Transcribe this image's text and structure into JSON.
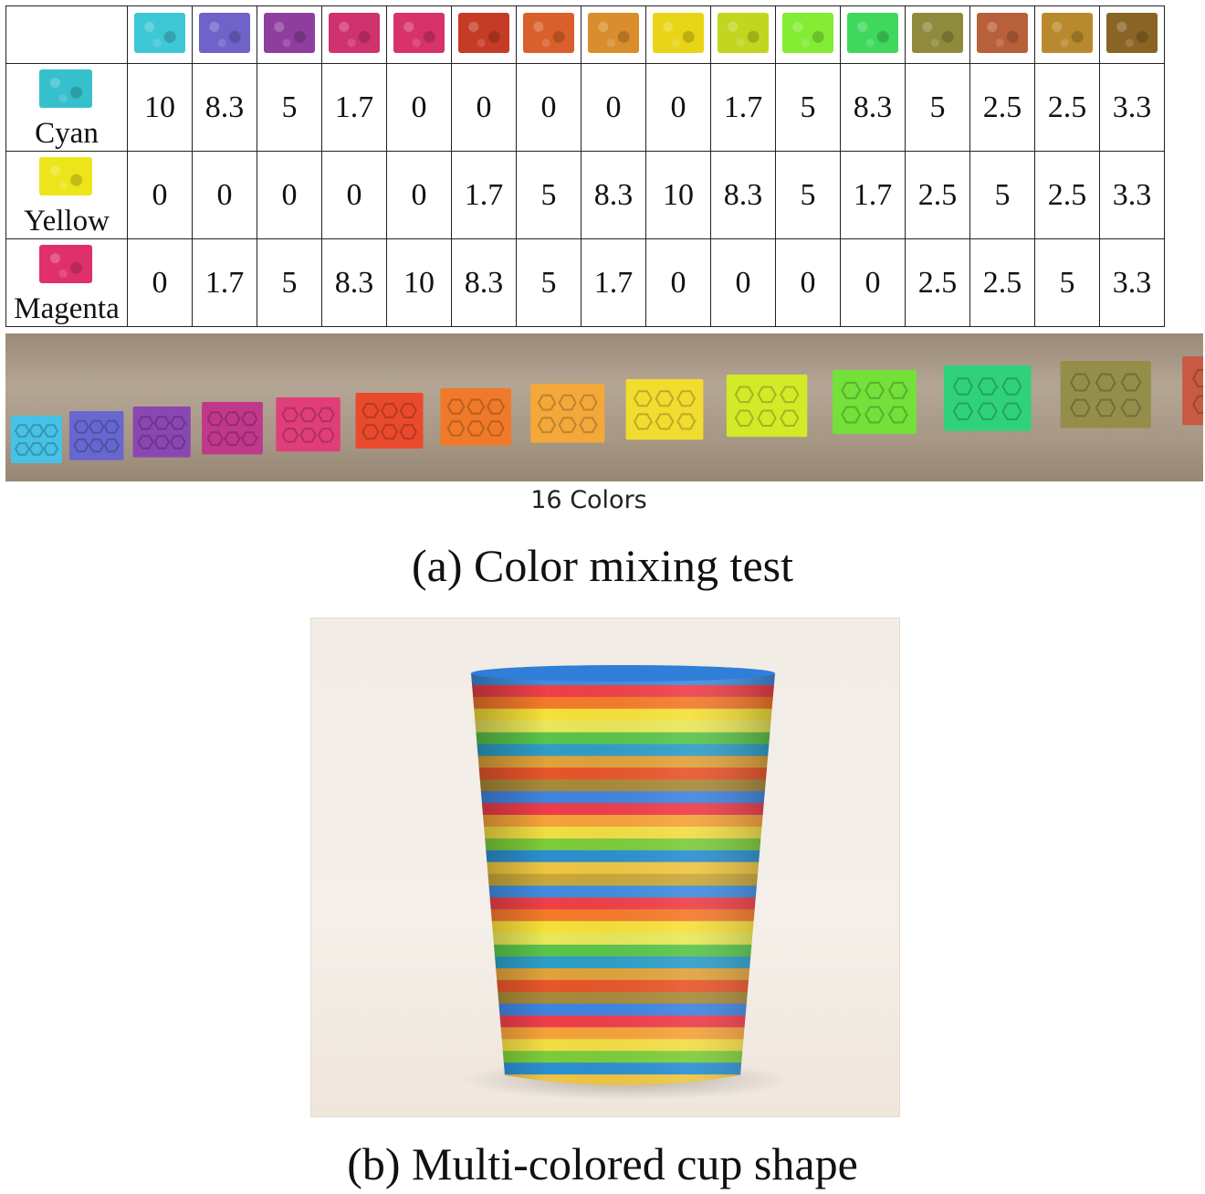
{
  "table": {
    "swatch_colors": [
      "#3ec7d6",
      "#6f62c8",
      "#8e3e9d",
      "#d0326e",
      "#d8326a",
      "#c53b26",
      "#d9602a",
      "#d98d2c",
      "#e8d515",
      "#c2d61f",
      "#84ec33",
      "#3fd85c",
      "#8f8a3c",
      "#b8603a",
      "#b98a2d",
      "#8a6424"
    ],
    "rows": [
      {
        "label": "Cyan",
        "color": "#35c0cc",
        "values": [
          "10",
          "8.3",
          "5",
          "1.7",
          "0",
          "0",
          "0",
          "0",
          "0",
          "1.7",
          "5",
          "8.3",
          "5",
          "2.5",
          "2.5",
          "3.3"
        ]
      },
      {
        "label": "Yellow",
        "color": "#ece51a",
        "values": [
          "0",
          "0",
          "0",
          "0",
          "0",
          "1.7",
          "5",
          "8.3",
          "10",
          "8.3",
          "5",
          "1.7",
          "2.5",
          "5",
          "2.5",
          "3.3"
        ]
      },
      {
        "label": "Magenta",
        "color": "#e0306a",
        "values": [
          "0",
          "1.7",
          "5",
          "8.3",
          "10",
          "8.3",
          "5",
          "1.7",
          "0",
          "0",
          "0",
          "0",
          "2.5",
          "2.5",
          "5",
          "3.3"
        ]
      }
    ]
  },
  "strip": {
    "tile_colors": [
      "#46c2e6",
      "#6668d0",
      "#8a47b2",
      "#c0388c",
      "#e03e7a",
      "#ea4a2c",
      "#f07a2a",
      "#f4a83a",
      "#f1dc30",
      "#d2ea28",
      "#74e03a",
      "#2fd27a",
      "#958e4a",
      "#c85a44",
      "#d99338",
      "#c77740"
    ],
    "caption": "16 Colors"
  },
  "captions": {
    "a": "(a) Color mixing test",
    "b": "(b) Multi-colored cup shape"
  },
  "cup": {
    "band_colors": [
      "#3f8de0",
      "#ef3f48",
      "#f47a2a",
      "#f6e03a",
      "#e8e85a",
      "#5ac44a",
      "#2e9ec8",
      "#e0a23a",
      "#e8552a",
      "#a88a3a",
      "#3f84e0",
      "#ee3d4a",
      "#f5a23a",
      "#f3dd44",
      "#7ccc3a",
      "#2b8fd0",
      "#f0c542",
      "#c9a83a"
    ]
  }
}
